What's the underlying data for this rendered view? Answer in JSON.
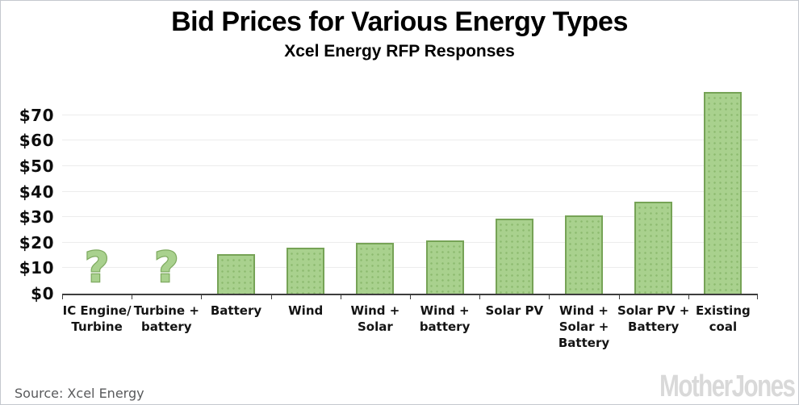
{
  "header": {
    "title": "Bid Prices for Various Energy Types",
    "subtitle": "Xcel Energy RFP Responses"
  },
  "chart_data": {
    "type": "bar",
    "title": "Bid Prices for Various Energy Types",
    "subtitle": "Xcel Energy RFP Responses",
    "categories": [
      "IC Engine/ Turbine",
      "Turbine + battery",
      "Battery",
      "Wind",
      "Wind + Solar",
      "Wind + battery",
      "Solar PV",
      "Wind + Solar + Battery",
      "Solar PV + Battery",
      "Existing coal"
    ],
    "category_label_lines": [
      [
        "IC Engine/",
        "Turbine"
      ],
      [
        "Turbine +",
        "battery"
      ],
      [
        "Battery"
      ],
      [
        "Wind"
      ],
      [
        "Wind +",
        "Solar"
      ],
      [
        "Wind +",
        "battery"
      ],
      [
        "Solar PV"
      ],
      [
        "Wind +",
        "Solar +",
        "Battery"
      ],
      [
        "Solar PV +",
        "Battery"
      ],
      [
        "Existing",
        "coal"
      ]
    ],
    "values": [
      null,
      null,
      15.5,
      18.1,
      19.9,
      21,
      29.5,
      30.6,
      36,
      79
    ],
    "unknown_marker": "?",
    "y_ticks": [
      {
        "value": 0,
        "label": "$0"
      },
      {
        "value": 10,
        "label": "$10"
      },
      {
        "value": 20,
        "label": "$20"
      },
      {
        "value": 30,
        "label": "$30"
      },
      {
        "value": 40,
        "label": "$40"
      },
      {
        "value": 50,
        "label": "$50"
      },
      {
        "value": 60,
        "label": "$60"
      },
      {
        "value": 70,
        "label": "$70"
      }
    ],
    "ylim": [
      0,
      80
    ],
    "grid": true,
    "legend_position": "none",
    "colors": {
      "bar_fill": "#a9d18e",
      "bar_dots": "#8cba6e",
      "bar_border": "#76a356",
      "gridline": "#ececec",
      "axis": "#3d3d3d",
      "unknown_marker_fill": "#a9d18e",
      "unknown_marker_outline": "#7fab60"
    }
  },
  "footer": {
    "source": "Source: Xcel Energy",
    "logo": "MotherJones",
    "logo_color": "#d9d9d9"
  }
}
